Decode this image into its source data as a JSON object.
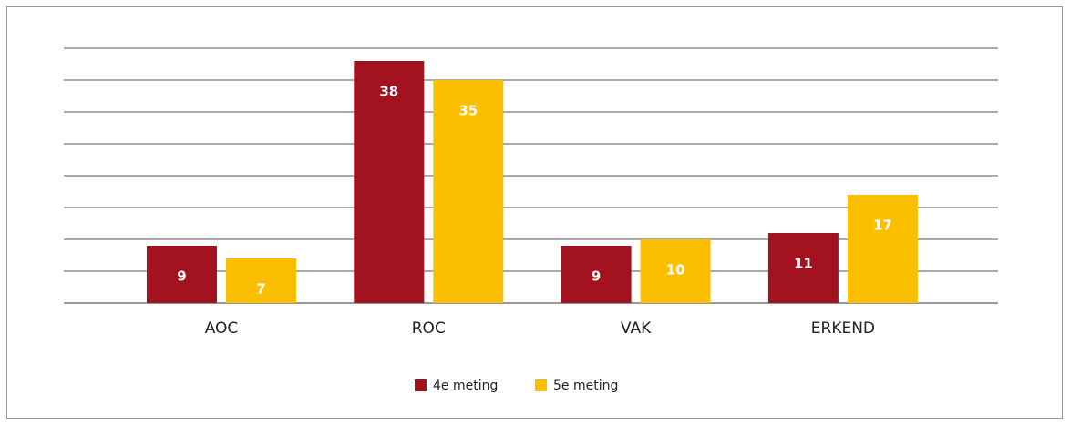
{
  "chart_data": {
    "type": "bar",
    "categories": [
      "AOC",
      "ROC",
      "VAK",
      "ERKEND"
    ],
    "series": [
      {
        "name": "4e meting",
        "color": "#a3121f",
        "values": [
          9,
          38,
          9,
          11
        ]
      },
      {
        "name": "5e meting",
        "color": "#fbbf00",
        "values": [
          7,
          35,
          10,
          17
        ]
      }
    ],
    "ylim": [
      0,
      40
    ],
    "yticks": [
      0,
      5,
      10,
      15,
      20,
      25,
      30,
      35,
      40
    ],
    "grid": true
  }
}
